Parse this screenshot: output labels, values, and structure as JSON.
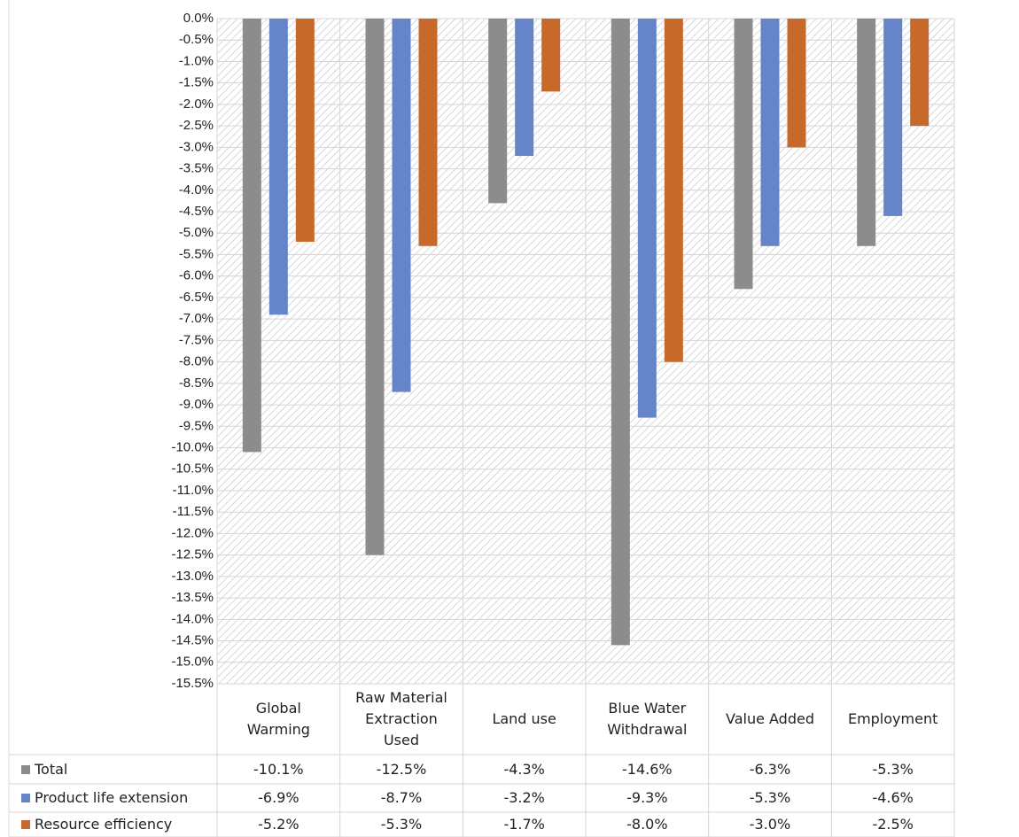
{
  "chart_data": {
    "type": "bar",
    "categories": [
      "Global Warming",
      "Raw Material Extraction Used",
      "Land use",
      "Blue Water Withdrawal",
      "Value Added",
      "Employment"
    ],
    "series": [
      {
        "name": "Total",
        "color": "#8c8c8c",
        "values": [
          -10.1,
          -12.5,
          -4.3,
          -14.6,
          -6.3,
          -5.3
        ],
        "value_labels": [
          "-10.1%",
          "-12.5%",
          "-4.3%",
          "-14.6%",
          "-6.3%",
          "-5.3%"
        ]
      },
      {
        "name": "Product life extension",
        "color": "#6585c8",
        "values": [
          -6.9,
          -8.7,
          -3.2,
          -9.3,
          -5.3,
          -4.6
        ],
        "value_labels": [
          "-6.9%",
          "-8.7%",
          "-3.2%",
          "-9.3%",
          "-5.3%",
          "-4.6%"
        ]
      },
      {
        "name": "Resource efficiency",
        "color": "#c8692c",
        "values": [
          -5.2,
          -5.3,
          -1.7,
          -8.0,
          -3.0,
          -2.5
        ],
        "value_labels": [
          "-5.2%",
          "-5.3%",
          "-1.7%",
          "-8.0%",
          "-3.0%",
          "-2.5%"
        ]
      }
    ],
    "ylim": [
      -15.5,
      0
    ],
    "yticks": [
      {
        "value": 0,
        "label": "0.0%"
      },
      {
        "value": -0.5,
        "label": "-0.5%"
      },
      {
        "value": -1,
        "label": "-1.0%"
      },
      {
        "value": -1.5,
        "label": "-1.5%"
      },
      {
        "value": -2,
        "label": "-2.0%"
      },
      {
        "value": -2.5,
        "label": "-2.5%"
      },
      {
        "value": -3,
        "label": "-3.0%"
      },
      {
        "value": -3.5,
        "label": "-3.5%"
      },
      {
        "value": -4,
        "label": "-4.0%"
      },
      {
        "value": -4.5,
        "label": "-4.5%"
      },
      {
        "value": -5,
        "label": "-5.0%"
      },
      {
        "value": -5.5,
        "label": "-5.5%"
      },
      {
        "value": -6,
        "label": "-6.0%"
      },
      {
        "value": -6.5,
        "label": "-6.5%"
      },
      {
        "value": -7,
        "label": "-7.0%"
      },
      {
        "value": -7.5,
        "label": "-7.5%"
      },
      {
        "value": -8,
        "label": "-8.0%"
      },
      {
        "value": -8.5,
        "label": "-8.5%"
      },
      {
        "value": -9,
        "label": "-9.0%"
      },
      {
        "value": -9.5,
        "label": "-9.5%"
      },
      {
        "value": -10,
        "label": "-10.0%"
      },
      {
        "value": -10.5,
        "label": "-10.5%"
      },
      {
        "value": -11,
        "label": "-11.0%"
      },
      {
        "value": -11.5,
        "label": "-11.5%"
      },
      {
        "value": -12,
        "label": "-12.0%"
      },
      {
        "value": -12.5,
        "label": "-12.5%"
      },
      {
        "value": -13,
        "label": "-13.0%"
      },
      {
        "value": -13.5,
        "label": "-13.5%"
      },
      {
        "value": -14,
        "label": "-14.0%"
      },
      {
        "value": -14.5,
        "label": "-14.5%"
      },
      {
        "value": -15,
        "label": "-15.0%"
      },
      {
        "value": -15.5,
        "label": "-15.5%"
      }
    ],
    "grid": true
  }
}
